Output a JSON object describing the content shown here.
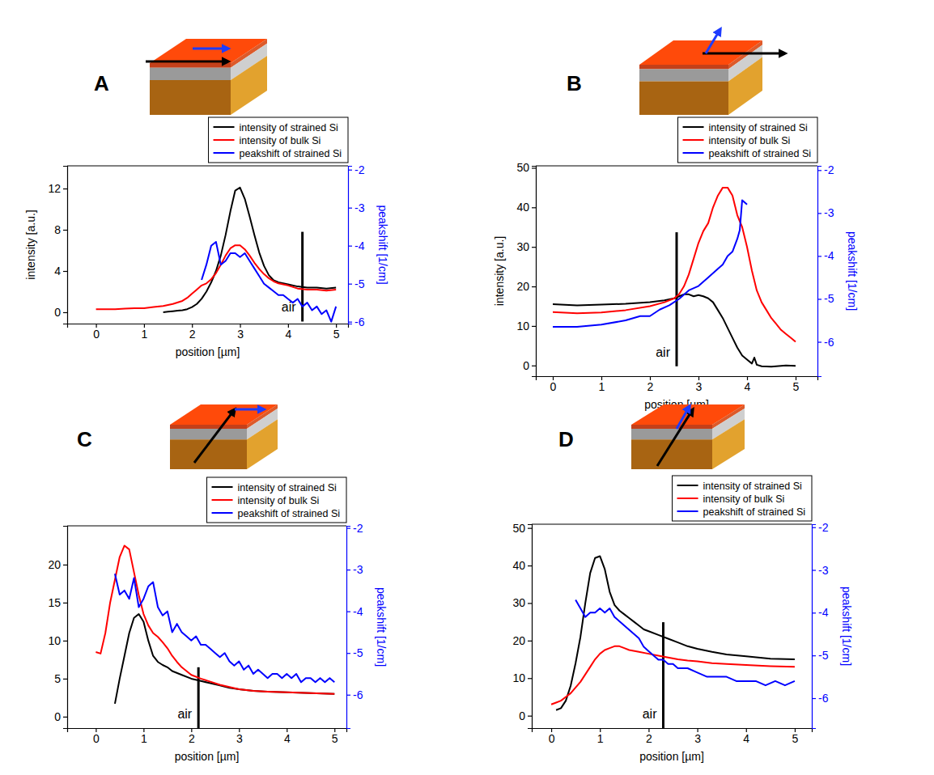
{
  "chart_data": [
    {
      "type": "line",
      "title": "A",
      "xlabel": "position [µm]",
      "ylabel": "intensity [a.u.]",
      "y2label": "peakshift [1/cm]",
      "xlim": [
        -0.6,
        5.25
      ],
      "xticks": [
        0,
        1,
        2,
        3,
        4,
        5
      ],
      "ylim": [
        -1.1,
        14.2
      ],
      "yticks": [
        0,
        4,
        8,
        12
      ],
      "y2lim": [
        -6.05,
        -1.9
      ],
      "y2ticks": [
        -6,
        -5,
        -4,
        -3,
        -2
      ],
      "legend": "top right",
      "annotations": [
        {
          "text": "air",
          "x": 4.3,
          "y0": -0.9,
          "y1": 7.8
        }
      ],
      "series": [
        {
          "name": "intensity of strained Si",
          "color": "#000000",
          "x": [
            1.4,
            1.5,
            1.6,
            1.7,
            1.8,
            1.9,
            2.0,
            2.1,
            2.2,
            2.3,
            2.4,
            2.5,
            2.6,
            2.7,
            2.8,
            2.9,
            3.0,
            3.1,
            3.2,
            3.3,
            3.4,
            3.5,
            3.6,
            3.7,
            3.8,
            3.9,
            4.0,
            4.2,
            4.4,
            4.6,
            4.8,
            5.0
          ],
          "values": [
            0,
            0.05,
            0.1,
            0.15,
            0.2,
            0.3,
            0.5,
            0.8,
            1.3,
            2.0,
            2.9,
            4.0,
            5.5,
            7.5,
            9.8,
            11.8,
            12.1,
            11.0,
            9.3,
            7.5,
            5.8,
            4.5,
            3.6,
            3.1,
            2.9,
            2.8,
            2.7,
            2.5,
            2.4,
            2.4,
            2.3,
            2.4
          ]
        },
        {
          "name": "intensity of bulk Si",
          "color": "#ff0000",
          "x": [
            0,
            0.2,
            0.4,
            0.6,
            0.8,
            1.0,
            1.2,
            1.4,
            1.6,
            1.8,
            1.9,
            2.0,
            2.1,
            2.2,
            2.3,
            2.4,
            2.5,
            2.6,
            2.7,
            2.8,
            2.9,
            3.0,
            3.1,
            3.2,
            3.3,
            3.4,
            3.5,
            3.6,
            3.7,
            3.8,
            3.9,
            4.0,
            4.2,
            4.4,
            4.6,
            4.8,
            5.0
          ],
          "values": [
            0.3,
            0.3,
            0.3,
            0.35,
            0.4,
            0.4,
            0.5,
            0.6,
            0.8,
            1.1,
            1.4,
            1.8,
            2.2,
            2.6,
            2.8,
            3.2,
            3.8,
            4.6,
            5.5,
            6.2,
            6.5,
            6.5,
            6.1,
            5.5,
            4.8,
            4.2,
            3.7,
            3.3,
            3.0,
            2.8,
            2.7,
            2.6,
            2.3,
            2.2,
            2.2,
            2.1,
            2.2
          ]
        },
        {
          "name": "peakshift of strained Si",
          "color": "#0000ff",
          "axis": "y2",
          "x": [
            2.2,
            2.3,
            2.4,
            2.5,
            2.6,
            2.7,
            2.8,
            2.9,
            3.0,
            3.1,
            3.2,
            3.3,
            3.4,
            3.5,
            3.6,
            3.7,
            3.8,
            3.9,
            4.0,
            4.1,
            4.2,
            4.3,
            4.4,
            4.5,
            4.6,
            4.7,
            4.8,
            4.9,
            5.0
          ],
          "values": [
            -4.9,
            -4.5,
            -4.0,
            -3.9,
            -4.5,
            -4.4,
            -4.2,
            -4.2,
            -4.3,
            -4.2,
            -4.4,
            -4.6,
            -4.8,
            -5.0,
            -5.1,
            -5.2,
            -5.3,
            -5.3,
            -5.4,
            -5.5,
            -5.4,
            -5.6,
            -5.5,
            -5.7,
            -5.6,
            -5.8,
            -5.7,
            -6.0,
            -5.6
          ]
        }
      ]
    },
    {
      "type": "line",
      "title": "B",
      "xlabel": "position [µm]",
      "ylabel": "intensity [a.u.]",
      "y2label": "peakshift [1/cm]",
      "xlim": [
        -0.35,
        5.45
      ],
      "xticks": [
        0,
        1,
        2,
        3,
        4,
        5
      ],
      "ylim": [
        -2.7,
        50.5
      ],
      "yticks": [
        0,
        10,
        20,
        30,
        40,
        50
      ],
      "y2lim": [
        -6.8,
        -1.9
      ],
      "y2ticks": [
        -6,
        -5,
        -4,
        -3,
        -2
      ],
      "legend": "top right",
      "annotations": [
        {
          "text": "air",
          "x": 2.55,
          "y0": -0.2,
          "y1": 33.7
        }
      ],
      "series": [
        {
          "name": "intensity of strained Si",
          "color": "#000000",
          "x": [
            0,
            0.5,
            1.0,
            1.5,
            2.0,
            2.3,
            2.5,
            2.6,
            2.7,
            2.8,
            2.9,
            3.0,
            3.1,
            3.2,
            3.3,
            3.4,
            3.5,
            3.6,
            3.7,
            3.8,
            3.9,
            4.0,
            4.1,
            4.15,
            4.2,
            4.3,
            4.5,
            4.8,
            5.0
          ],
          "values": [
            15.5,
            15.2,
            15.4,
            15.6,
            16,
            16.5,
            17,
            17.5,
            18,
            18,
            17.5,
            17.8,
            17.5,
            17,
            16,
            14,
            12,
            9.5,
            7,
            4.5,
            2.5,
            1.5,
            0.5,
            2.0,
            0.2,
            -0.2,
            -0.3,
            0,
            -0.1
          ]
        },
        {
          "name": "intensity of bulk Si",
          "color": "#ff0000",
          "x": [
            0,
            0.5,
            1.0,
            1.5,
            2.0,
            2.3,
            2.5,
            2.6,
            2.7,
            2.8,
            2.9,
            3.0,
            3.1,
            3.2,
            3.3,
            3.4,
            3.5,
            3.6,
            3.7,
            3.8,
            3.9,
            4.0,
            4.1,
            4.2,
            4.3,
            4.4,
            4.5,
            4.6,
            4.7,
            4.8,
            4.9,
            5.0
          ],
          "values": [
            13.5,
            13.2,
            13.4,
            14,
            15,
            16,
            17,
            18,
            20,
            23,
            27,
            31,
            34,
            36,
            40,
            43,
            45,
            45,
            43,
            38,
            35,
            30,
            24,
            19,
            16,
            14,
            12,
            10.5,
            9,
            8,
            7,
            6
          ]
        },
        {
          "name": "peakshift of strained Si",
          "color": "#0000ff",
          "axis": "y2",
          "x": [
            0,
            0.5,
            1.0,
            1.5,
            1.8,
            2.0,
            2.2,
            2.4,
            2.6,
            2.8,
            3.0,
            3.2,
            3.4,
            3.5,
            3.6,
            3.7,
            3.8,
            3.85,
            3.9,
            4.0
          ],
          "values": [
            -5.65,
            -5.65,
            -5.6,
            -5.5,
            -5.4,
            -5.4,
            -5.25,
            -5.15,
            -5.0,
            -4.8,
            -4.7,
            -4.5,
            -4.3,
            -4.2,
            -4.0,
            -3.9,
            -3.6,
            -3.4,
            -2.7,
            -2.8
          ]
        }
      ]
    },
    {
      "type": "line",
      "title": "C",
      "xlabel": "position [µm]",
      "y2label": "peakshift [1/cm]",
      "xlim": [
        -0.6,
        5.25
      ],
      "xticks": [
        0,
        1,
        2,
        3,
        4,
        5
      ],
      "ylim": [
        -1.5,
        25.1
      ],
      "yticks": [
        0,
        5,
        10,
        15,
        20
      ],
      "y2lim": [
        -6.8,
        -1.95
      ],
      "y2ticks": [
        -6,
        -5,
        -4,
        -3,
        -2
      ],
      "legend": "top right",
      "annotations": [
        {
          "text": "air",
          "x": 2.15,
          "y0": -1.5,
          "y1": 6.5
        }
      ],
      "series": [
        {
          "name": "intensity of strained Si",
          "color": "#000000",
          "x": [
            0.4,
            0.5,
            0.6,
            0.7,
            0.8,
            0.9,
            1.0,
            1.1,
            1.2,
            1.3,
            1.4,
            1.5,
            1.6,
            1.8,
            2.0,
            2.2,
            2.4,
            2.6,
            2.8,
            3.0,
            3.3,
            3.6,
            4.0,
            4.5,
            5.0
          ],
          "values": [
            1.7,
            5,
            8,
            11,
            13,
            13.5,
            12.5,
            10,
            8,
            7.2,
            6.8,
            6.5,
            6.0,
            5.5,
            5.0,
            4.7,
            4.4,
            4.1,
            3.8,
            3.6,
            3.4,
            3.3,
            3.2,
            3.1,
            3.0
          ]
        },
        {
          "name": "intensity of bulk Si",
          "color": "#ff0000",
          "x": [
            0,
            0.1,
            0.2,
            0.3,
            0.4,
            0.5,
            0.6,
            0.7,
            0.8,
            0.9,
            1.0,
            1.1,
            1.2,
            1.3,
            1.4,
            1.5,
            1.6,
            1.7,
            1.8,
            1.9,
            2.0,
            2.2,
            2.4,
            2.6,
            2.8,
            3.0,
            3.3,
            3.6,
            4.0,
            4.5,
            5.0
          ],
          "values": [
            8.5,
            8.3,
            11,
            15,
            18,
            21,
            22.5,
            22,
            19,
            16,
            13.5,
            12,
            11,
            10.5,
            9.8,
            9,
            8,
            7.2,
            6.5,
            6,
            5.5,
            5.0,
            4.6,
            4.2,
            3.9,
            3.6,
            3.4,
            3.3,
            3.2,
            3.1,
            3.0
          ]
        },
        {
          "name": "peakshift of strained Si",
          "color": "#0000ff",
          "axis": "y2",
          "x": [
            0.4,
            0.5,
            0.6,
            0.7,
            0.8,
            0.9,
            1.0,
            1.1,
            1.2,
            1.3,
            1.4,
            1.5,
            1.6,
            1.7,
            1.8,
            1.9,
            2.0,
            2.1,
            2.2,
            2.3,
            2.4,
            2.5,
            2.6,
            2.7,
            2.8,
            2.9,
            3.0,
            3.1,
            3.2,
            3.3,
            3.4,
            3.5,
            3.6,
            3.7,
            3.8,
            3.9,
            4.0,
            4.1,
            4.2,
            4.3,
            4.4,
            4.5,
            4.6,
            4.7,
            4.8,
            4.9,
            5.0
          ],
          "values": [
            -3.1,
            -3.6,
            -3.5,
            -3.7,
            -3.2,
            -3.9,
            -3.7,
            -3.4,
            -3.3,
            -3.9,
            -4.1,
            -4.0,
            -4.5,
            -4.3,
            -4.5,
            -4.6,
            -4.7,
            -4.6,
            -4.8,
            -4.8,
            -4.9,
            -5.0,
            -5.1,
            -5.0,
            -5.2,
            -5.3,
            -5.2,
            -5.4,
            -5.3,
            -5.5,
            -5.4,
            -5.5,
            -5.6,
            -5.5,
            -5.5,
            -5.6,
            -5.5,
            -5.6,
            -5.5,
            -5.7,
            -5.6,
            -5.6,
            -5.7,
            -5.6,
            -5.7,
            -5.6,
            -5.7
          ]
        }
      ]
    },
    {
      "type": "line",
      "title": "D",
      "xlabel": "position [µm]",
      "y2label": "peakshift [1/cm]",
      "xlim": [
        -0.4,
        5.35
      ],
      "xticks": [
        0,
        1,
        2,
        3,
        4,
        5
      ],
      "ylim": [
        -3.3,
        51
      ],
      "yticks": [
        0,
        10,
        20,
        30,
        40,
        50
      ],
      "y2lim": [
        -6.7,
        -1.93
      ],
      "y2ticks": [
        -6,
        -5,
        -4,
        -3,
        -2
      ],
      "legend": "top right",
      "annotations": [
        {
          "text": "air",
          "x": 2.3,
          "y0": -3.3,
          "y1": 24.9
        }
      ],
      "series": [
        {
          "name": "intensity of strained Si",
          "color": "#000000",
          "x": [
            0.1,
            0.2,
            0.3,
            0.4,
            0.5,
            0.6,
            0.7,
            0.8,
            0.9,
            1.0,
            1.1,
            1.2,
            1.3,
            1.4,
            1.5,
            1.6,
            1.7,
            1.8,
            1.9,
            2.0,
            2.2,
            2.4,
            2.6,
            2.8,
            3.0,
            3.3,
            3.6,
            4.0,
            4.5,
            5.0
          ],
          "values": [
            1.5,
            2,
            4,
            8,
            14,
            21,
            30,
            38,
            42,
            42.5,
            39,
            33,
            29.5,
            28,
            27,
            26,
            25,
            24,
            23,
            22.5,
            21.5,
            20.5,
            19.5,
            18.5,
            17.8,
            17,
            16.3,
            15.8,
            15.2,
            15
          ]
        },
        {
          "name": "intensity of bulk Si",
          "color": "#ff0000",
          "x": [
            0,
            0.1,
            0.2,
            0.3,
            0.4,
            0.5,
            0.6,
            0.7,
            0.8,
            0.9,
            1.0,
            1.1,
            1.2,
            1.3,
            1.4,
            1.5,
            1.6,
            1.8,
            2.0,
            2.2,
            2.4,
            2.6,
            2.8,
            3.0,
            3.3,
            3.6,
            4.0,
            4.5,
            5.0
          ],
          "values": [
            3,
            3.5,
            4,
            5,
            6,
            7.5,
            9,
            11,
            13,
            15,
            16.5,
            17.5,
            18,
            18.5,
            18.5,
            18,
            17.5,
            17,
            16.5,
            16,
            15.5,
            15,
            14.7,
            14.5,
            14,
            13.8,
            13.5,
            13.2,
            13
          ]
        },
        {
          "name": "peakshift of strained Si",
          "color": "#0000ff",
          "axis": "y2",
          "x": [
            0.5,
            0.6,
            0.7,
            0.8,
            0.9,
            1.0,
            1.1,
            1.2,
            1.3,
            1.4,
            1.5,
            1.6,
            1.7,
            1.8,
            1.9,
            2.0,
            2.1,
            2.2,
            2.3,
            2.4,
            2.5,
            2.6,
            2.8,
            3.0,
            3.2,
            3.4,
            3.6,
            3.8,
            4.0,
            4.2,
            4.4,
            4.6,
            4.8,
            5.0
          ],
          "values": [
            -3.7,
            -3.9,
            -4.1,
            -4.0,
            -4.0,
            -3.9,
            -4.0,
            -3.9,
            -4.1,
            -4.2,
            -4.3,
            -4.4,
            -4.5,
            -4.6,
            -4.8,
            -4.9,
            -5.0,
            -5.1,
            -5.1,
            -5.2,
            -5.2,
            -5.3,
            -5.3,
            -5.4,
            -5.5,
            -5.5,
            -5.5,
            -5.6,
            -5.6,
            -5.6,
            -5.7,
            -5.6,
            -5.7,
            -5.6
          ]
        }
      ]
    }
  ]
}
